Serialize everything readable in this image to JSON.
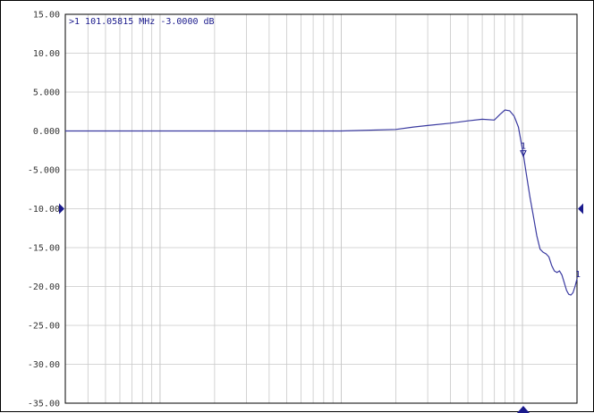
{
  "chart_data": {
    "type": "line",
    "title": "",
    "xlabel": "",
    "ylabel": "",
    "x_scale": "log",
    "x_unit": "MHz",
    "y_unit": "dB",
    "xlim": [
      0.3,
      200
    ],
    "ylim": [
      -35,
      15
    ],
    "grid": true,
    "yticks": [
      "15.00",
      "10.00",
      "5.000",
      "0.000",
      "-5.000",
      "-10.00",
      "-15.00",
      "-20.00",
      "-25.00",
      "-30.00",
      "-35.00"
    ],
    "ytick_values": [
      15,
      10,
      5,
      0,
      -5,
      -10,
      -15,
      -20,
      -25,
      -30,
      -35
    ],
    "marker_readout": ">1  101.05815 MHz -3.0000 dB",
    "marker": {
      "label": "1",
      "x": 101.05815,
      "y": -3.0
    },
    "end_marker_label": "1",
    "reference_level": -10,
    "series": [
      {
        "color": "#3a3aa0",
        "x": [
          0.3,
          1,
          3,
          10,
          20,
          25,
          30,
          40,
          50,
          60,
          70,
          75,
          80,
          85,
          90,
          95,
          101.06,
          105,
          110,
          115,
          120,
          125,
          130,
          135,
          140,
          145,
          150,
          155,
          160,
          165,
          170,
          175,
          180,
          185,
          190,
          195,
          200
        ],
        "y": [
          0,
          0,
          0,
          0,
          0.2,
          0.5,
          0.7,
          1.0,
          1.3,
          1.5,
          1.4,
          2.1,
          2.7,
          2.6,
          1.9,
          0.5,
          -3.0,
          -5.5,
          -8.5,
          -11,
          -13.5,
          -15.2,
          -15.6,
          -15.8,
          -16.2,
          -17.3,
          -18.0,
          -18.2,
          -18.0,
          -18.5,
          -19.5,
          -20.5,
          -21.0,
          -21.1,
          -20.8,
          -20.0,
          -19.0
        ]
      }
    ],
    "colors": {
      "trace": "#3a3aa0",
      "grid": "#c8c8c8",
      "markers": "#1a1a8c"
    }
  }
}
